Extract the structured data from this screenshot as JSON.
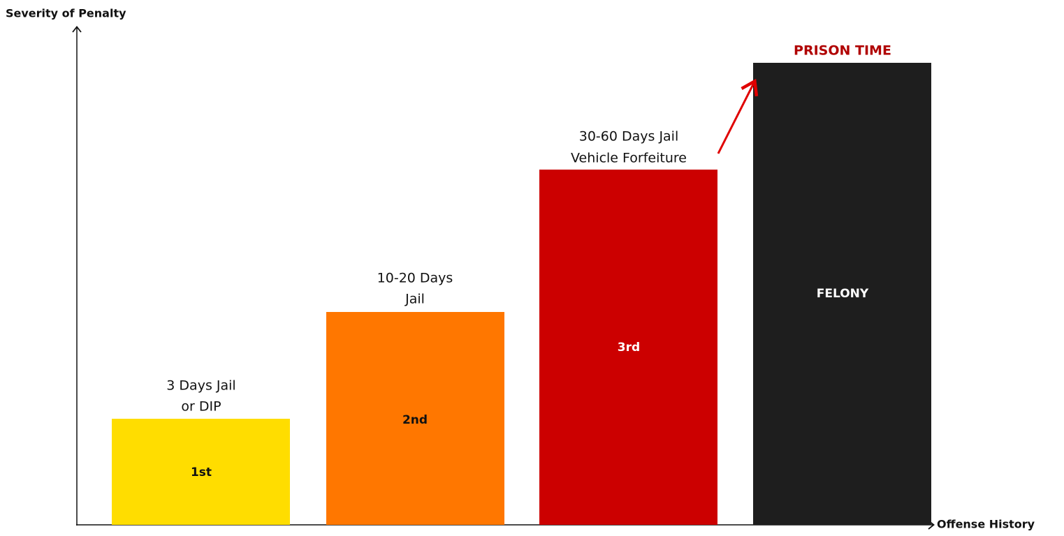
{
  "axes": {
    "y_label": "Severity of Penalty",
    "x_label": "Offense History"
  },
  "bars": [
    {
      "label": "1st",
      "caption": [
        "3 Days Jail",
        "or DIP"
      ]
    },
    {
      "label": "2nd",
      "caption": [
        "10-20 Days",
        "Jail"
      ]
    },
    {
      "label": "3rd",
      "caption": [
        "30-60 Days Jail",
        "Vehicle Forfeiture"
      ]
    },
    {
      "label": "FELONY",
      "caption": []
    }
  ],
  "annotation": "PRISON TIME"
}
